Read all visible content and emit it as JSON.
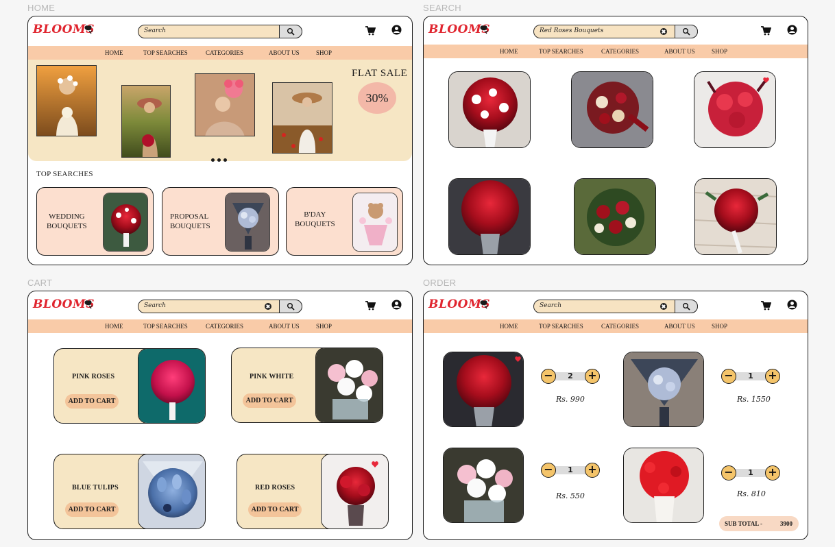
{
  "frames": {
    "home": "HOME",
    "search": "SEARCH",
    "cart": "CART",
    "order": "ORDER"
  },
  "brand": {
    "logo": "BLOOMS",
    "accent": "#e0252f",
    "nav_bg": "#f9cba8"
  },
  "nav": [
    "HOME",
    "TOP SEARCHES",
    "CATEGORIES",
    "ABOUT US",
    "SHOP"
  ],
  "search_values": {
    "home": "Search",
    "search": "Red Roses Bouquets",
    "cart": "Search",
    "order": "Search"
  },
  "home": {
    "sale_title": "FLAT SALE",
    "sale_percent": "30%",
    "top_searches_title": "TOP SEARCHES",
    "top_searches": [
      {
        "line1": "WEDDING",
        "line2": "BOUQUETS"
      },
      {
        "line1": "PROPOSAL",
        "line2": "BOUQUETS"
      },
      {
        "line1": "B'DAY",
        "line2": "BOUQUETS"
      }
    ]
  },
  "cart": {
    "items": [
      {
        "name": "PINK ROSES",
        "button": "ADD TO CART"
      },
      {
        "name": "PINK WHITE",
        "button": "ADD TO CART"
      },
      {
        "name": "BLUE TULIPS",
        "button": "ADD TO CART"
      },
      {
        "name": "RED ROSES",
        "button": "ADD TO CART"
      }
    ]
  },
  "order": {
    "items": [
      {
        "qty": "2",
        "price": "Rs. 990"
      },
      {
        "qty": "1",
        "price": "Rs. 1550"
      },
      {
        "qty": "1",
        "price": "Rs. 550"
      },
      {
        "qty": "1",
        "price": "Rs. 810"
      }
    ],
    "subtotal_label": "SUB TOTAL -",
    "subtotal_value": "3900"
  }
}
